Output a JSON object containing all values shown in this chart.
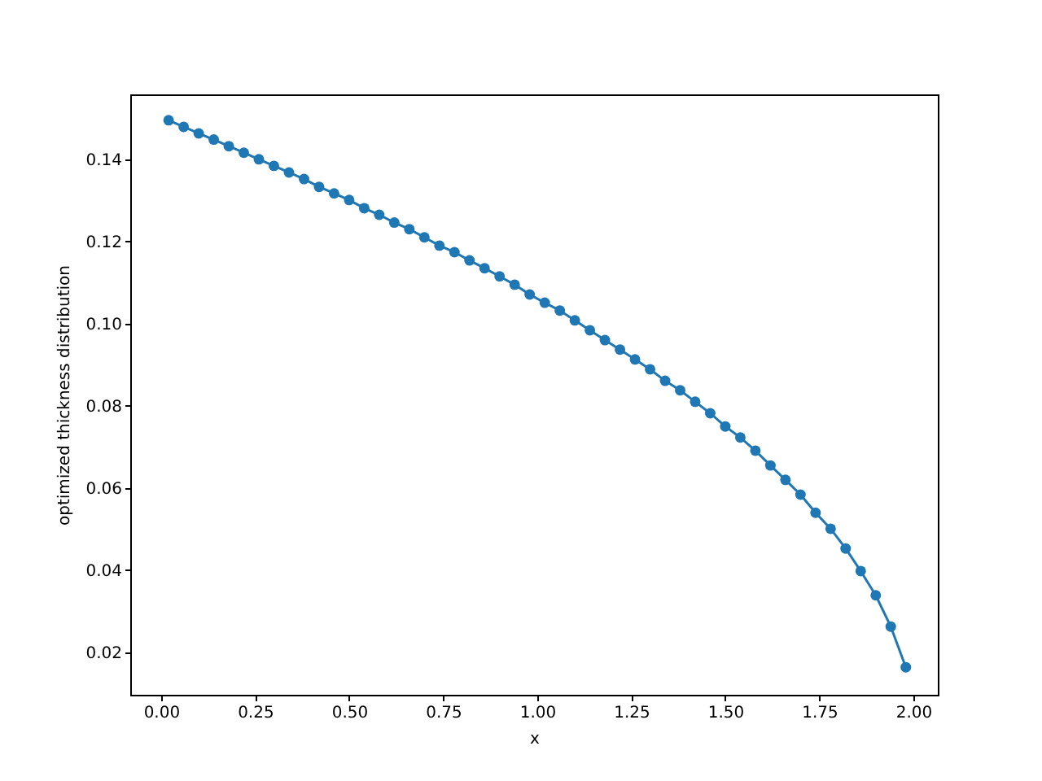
{
  "chart_data": {
    "type": "line",
    "xlabel": "x",
    "ylabel": "optimized thickness distribution",
    "marker": "circle",
    "line_style": "solid",
    "grid": false,
    "xlim": [
      -0.082,
      2.065
    ],
    "ylim": [
      0.0097,
      0.1558
    ],
    "xticks": [
      {
        "value": 0,
        "label": "0.00"
      },
      {
        "value": 0.25,
        "label": "0.25"
      },
      {
        "value": 0.5,
        "label": "0.50"
      },
      {
        "value": 0.75,
        "label": "0.75"
      },
      {
        "value": 1,
        "label": "1.00"
      },
      {
        "value": 1.25,
        "label": "1.25"
      },
      {
        "value": 1.5,
        "label": "1.50"
      },
      {
        "value": 1.75,
        "label": "1.75"
      },
      {
        "value": 2,
        "label": "2.00"
      }
    ],
    "yticks": [
      {
        "value": 0.02,
        "label": "0.02"
      },
      {
        "value": 0.04,
        "label": "0.04"
      },
      {
        "value": 0.06,
        "label": "0.06"
      },
      {
        "value": 0.08,
        "label": "0.08"
      },
      {
        "value": 0.1,
        "label": "0.10"
      },
      {
        "value": 0.12,
        "label": "0.12"
      },
      {
        "value": 0.14,
        "label": "0.14"
      }
    ],
    "x": [
      0.02,
      0.06,
      0.1,
      0.14,
      0.18,
      0.22,
      0.26,
      0.3,
      0.34,
      0.38,
      0.42,
      0.46,
      0.5,
      0.54,
      0.58,
      0.62,
      0.66,
      0.7,
      0.74,
      0.78,
      0.82,
      0.86,
      0.9,
      0.94,
      0.98,
      1.02,
      1.06,
      1.1,
      1.14,
      1.18,
      1.22,
      1.26,
      1.3,
      1.34,
      1.38,
      1.42,
      1.46,
      1.5,
      1.54,
      1.58,
      1.62,
      1.66,
      1.7,
      1.74,
      1.78,
      1.82,
      1.86,
      1.9,
      1.94,
      1.98
    ],
    "series": [
      {
        "color": "#1f77b4",
        "values": [
          0.1495,
          0.1479,
          0.1463,
          0.1448,
          0.1432,
          0.1416,
          0.14,
          0.1384,
          0.1368,
          0.1352,
          0.1333,
          0.1317,
          0.1301,
          0.1281,
          0.1265,
          0.1246,
          0.123,
          0.121,
          0.119,
          0.1174,
          0.1154,
          0.1135,
          0.1115,
          0.1095,
          0.1071,
          0.1051,
          0.1032,
          0.1008,
          0.0984,
          0.096,
          0.0937,
          0.0913,
          0.0889,
          0.0861,
          0.0838,
          0.081,
          0.0782,
          0.075,
          0.0723,
          0.0691,
          0.0655,
          0.062,
          0.0584,
          0.054,
          0.0501,
          0.0453,
          0.0398,
          0.0339,
          0.0263,
          0.0164
        ]
      }
    ]
  }
}
